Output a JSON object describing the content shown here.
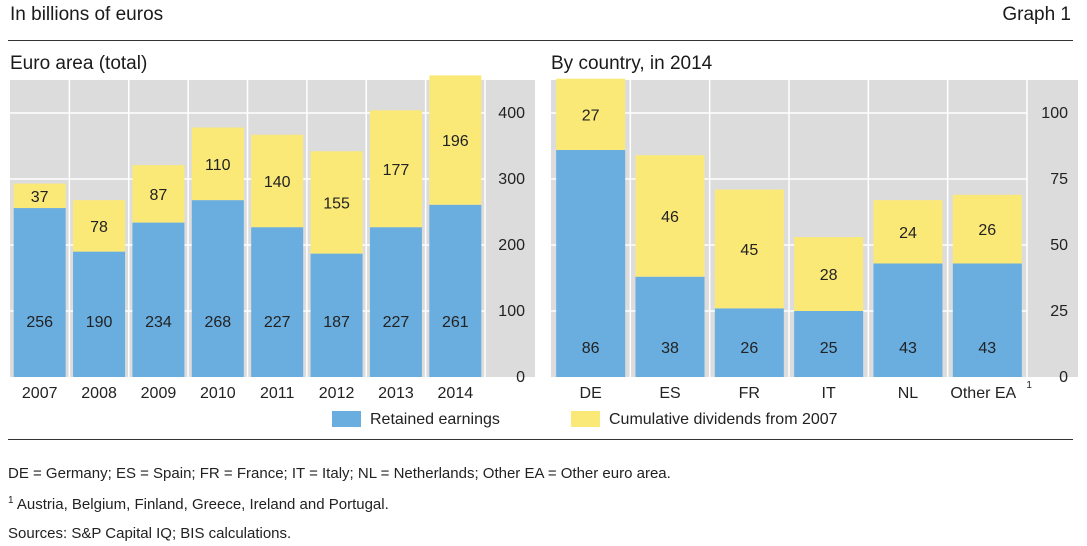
{
  "header": {
    "title": "In billions of euros",
    "graph_label": "Graph 1"
  },
  "chart_data": [
    {
      "type": "bar",
      "stacked": true,
      "title": "Euro area (total)",
      "categories": [
        "2007",
        "2008",
        "2009",
        "2010",
        "2011",
        "2012",
        "2013",
        "2014"
      ],
      "series": [
        {
          "name": "Retained earnings",
          "color": "#6aaee0",
          "values": [
            256,
            190,
            234,
            268,
            227,
            187,
            227,
            261
          ]
        },
        {
          "name": "Cumulative dividends from 2007",
          "color": "#fbe977",
          "values": [
            37,
            78,
            87,
            110,
            140,
            155,
            177,
            196
          ]
        }
      ],
      "yticks": [
        "0",
        "100",
        "200",
        "300",
        "400"
      ],
      "ylim": [
        0,
        450
      ],
      "ylabel_position": "right",
      "grid": true
    },
    {
      "type": "bar",
      "stacked": true,
      "title": "By country, in 2014",
      "categories": [
        "DE",
        "ES",
        "FR",
        "IT",
        "NL",
        "Other EA"
      ],
      "category_footnote": {
        "index": 5,
        "marker": "1"
      },
      "series": [
        {
          "name": "Retained earnings",
          "color": "#6aaee0",
          "values": [
            86,
            38,
            26,
            25,
            43,
            43
          ]
        },
        {
          "name": "Cumulative dividends from 2007",
          "color": "#fbe977",
          "values": [
            27,
            46,
            45,
            28,
            24,
            26
          ]
        }
      ],
      "yticks": [
        "0",
        "25",
        "50",
        "75",
        "100"
      ],
      "ylim": [
        0,
        112.5
      ],
      "ylabel_position": "right",
      "grid": true
    }
  ],
  "legend": [
    {
      "label": "Retained earnings",
      "color": "#6aaee0"
    },
    {
      "label": "Cumulative dividends from 2007",
      "color": "#fbe977"
    }
  ],
  "notes": {
    "abbreviations": "DE = Germany; ES = Spain; FR = France; IT = Italy; NL = Netherlands; Other EA = Other euro area.",
    "footnote_marker": "1",
    "footnote_text": "Austria, Belgium, Finland, Greece, Ireland and Portugal.",
    "sources": "Sources: S&P Capital IQ; BIS calculations."
  }
}
